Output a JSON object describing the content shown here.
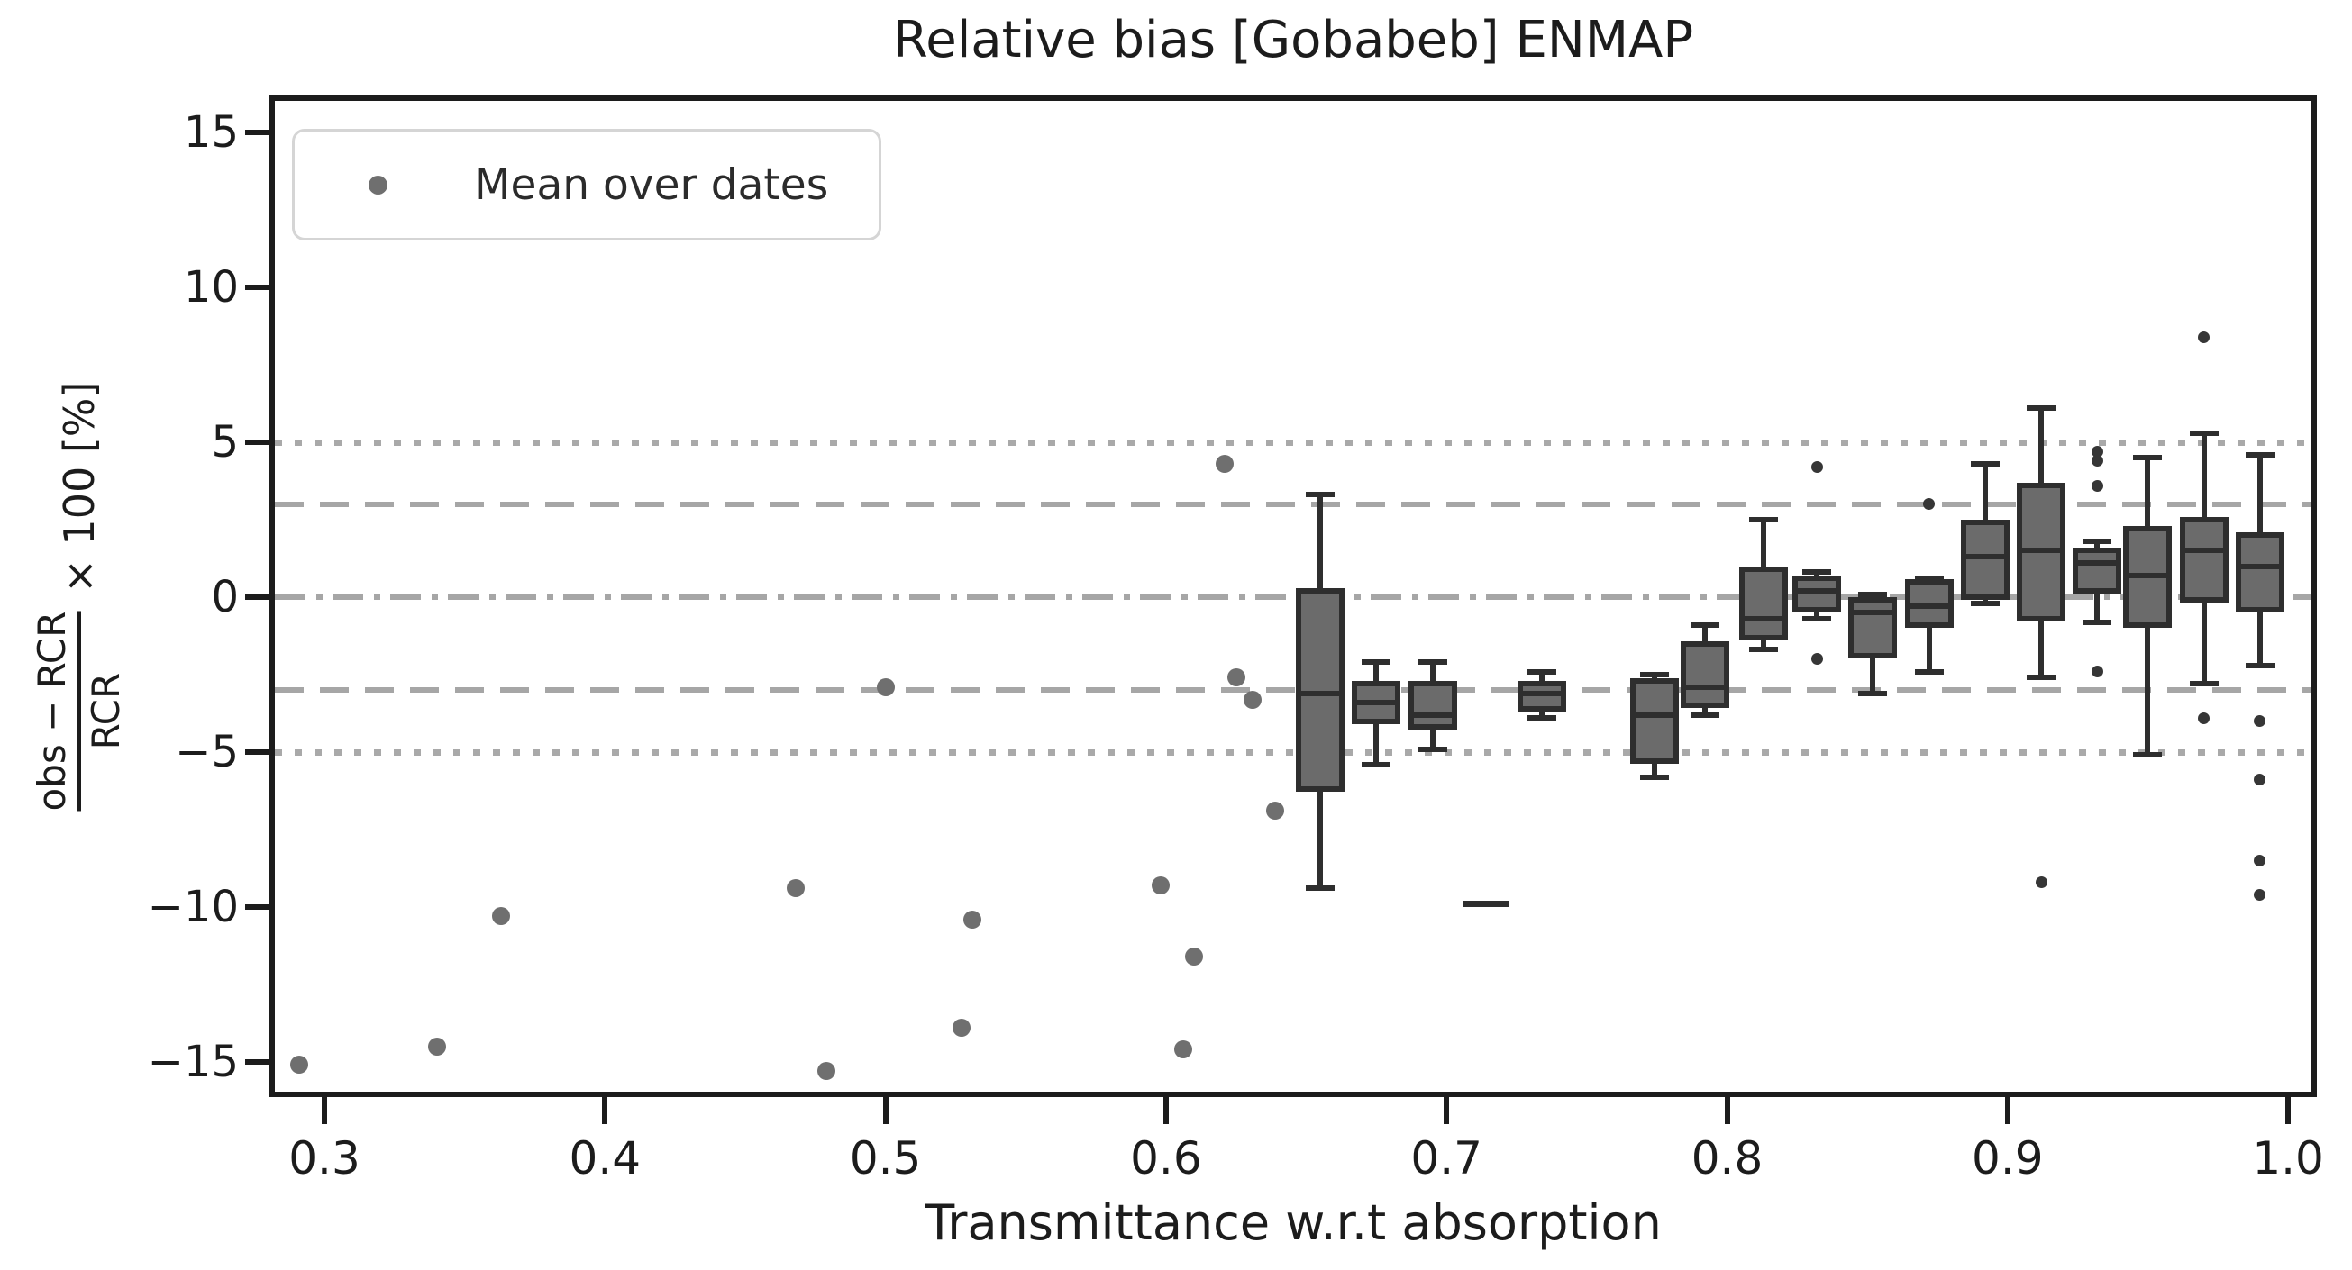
{
  "title": "Relative bias [Gobabeb] ENMAP",
  "legend": {
    "label": "Mean over dates",
    "marker": "gray-dot"
  },
  "x_axis": {
    "label": "Transmittance w.r.t absorption",
    "tick_labels": [
      "0.3",
      "0.4",
      "0.5",
      "0.6",
      "0.7",
      "0.8",
      "0.9",
      "1.0"
    ]
  },
  "y_axis": {
    "label_numerator": "obs − RCR",
    "label_denominator": "RCR",
    "label_suffix": "× 100 [%]",
    "tick_labels": [
      "15",
      "10",
      "5",
      "0",
      "−5",
      "−10",
      "−15"
    ]
  },
  "colors": {
    "box_fill": "#6b6b6b",
    "box_edge": "#2e2e2e",
    "mean_dot": "#6f6f6f",
    "flier_dot": "#363636",
    "reference_line": "#a6a6a6",
    "spine": "#1c1c1c",
    "background": "#ffffff"
  },
  "chart_data": {
    "type": "boxplot+scatter",
    "title": "Relative bias [Gobabeb] ENMAP",
    "xlabel": "Transmittance w.r.t absorption",
    "ylabel": "(obs − RCR)/RCR × 100 [%]",
    "xlim": [
      0.281,
      1.009
    ],
    "ylim": [
      -16.1,
      16.1
    ],
    "grid": false,
    "legend_position": "upper left",
    "x_ticks": [
      0.3,
      0.4,
      0.5,
      0.6,
      0.7,
      0.8,
      0.9,
      1.0
    ],
    "y_ticks": [
      15,
      10,
      5,
      0,
      -5,
      -10,
      -15
    ],
    "reference_lines": [
      {
        "y": 5,
        "style": "dotted"
      },
      {
        "y": 3,
        "style": "dashed"
      },
      {
        "y": 0,
        "style": "dashdot"
      },
      {
        "y": -3,
        "style": "dashed"
      },
      {
        "y": -5,
        "style": "dotted"
      }
    ],
    "means_series_name": "Mean over dates",
    "means": [
      [
        0.291,
        -15.1
      ],
      [
        0.34,
        -14.5
      ],
      [
        0.363,
        -10.3
      ],
      [
        0.468,
        -9.4
      ],
      [
        0.479,
        -15.3
      ],
      [
        0.5,
        -2.9
      ],
      [
        0.527,
        -13.9
      ],
      [
        0.531,
        -10.4
      ],
      [
        0.598,
        -9.3
      ],
      [
        0.606,
        -14.6
      ],
      [
        0.61,
        -11.6
      ],
      [
        0.621,
        4.3
      ],
      [
        0.625,
        -2.6
      ],
      [
        0.631,
        -3.3
      ],
      [
        0.639,
        -6.9
      ]
    ],
    "boxes": [
      {
        "x": 0.655,
        "whislo": -9.4,
        "q1": -6.2,
        "med": -3.1,
        "q3": 0.2,
        "whishi": 3.3,
        "fliers": []
      },
      {
        "x": 0.675,
        "whislo": -5.4,
        "q1": -4.0,
        "med": -3.4,
        "q3": -2.8,
        "whishi": -2.1,
        "fliers": []
      },
      {
        "x": 0.695,
        "whislo": -4.9,
        "q1": -4.2,
        "med": -3.8,
        "q3": -2.8,
        "whishi": -2.1,
        "fliers": []
      },
      {
        "x": 0.734,
        "whislo": -3.9,
        "q1": -3.6,
        "med": -3.1,
        "q3": -2.8,
        "whishi": -2.4,
        "fliers": []
      },
      {
        "x": 0.774,
        "whislo": -5.8,
        "q1": -5.3,
        "med": -3.8,
        "q3": -2.7,
        "whishi": -2.5,
        "fliers": []
      },
      {
        "x": 0.792,
        "whislo": -3.8,
        "q1": -3.5,
        "med": -2.9,
        "q3": -1.5,
        "whishi": -0.9,
        "fliers": []
      },
      {
        "x": 0.813,
        "whislo": -1.7,
        "q1": -1.3,
        "med": -0.7,
        "q3": 0.9,
        "whishi": 2.5,
        "fliers": []
      },
      {
        "x": 0.832,
        "whislo": -0.7,
        "q1": -0.4,
        "med": 0.2,
        "q3": 0.6,
        "whishi": 0.8,
        "fliers": [
          4.2,
          -2.0
        ]
      },
      {
        "x": 0.852,
        "whislo": -3.1,
        "q1": -1.9,
        "med": -0.5,
        "q3": -0.1,
        "whishi": 0.1,
        "fliers": []
      },
      {
        "x": 0.872,
        "whislo": -2.4,
        "q1": -0.9,
        "med": -0.3,
        "q3": 0.5,
        "whishi": 0.6,
        "fliers": [
          3.0
        ]
      },
      {
        "x": 0.892,
        "whislo": -0.2,
        "q1": 0.0,
        "med": 1.3,
        "q3": 2.4,
        "whishi": 4.3,
        "fliers": []
      },
      {
        "x": 0.912,
        "whislo": -2.6,
        "q1": -0.7,
        "med": 1.5,
        "q3": 3.6,
        "whishi": 6.1,
        "fliers": [
          -9.2
        ]
      },
      {
        "x": 0.932,
        "whislo": -0.8,
        "q1": 0.2,
        "med": 1.1,
        "q3": 1.5,
        "whishi": 1.8,
        "fliers": [
          4.7,
          4.4,
          3.6,
          -2.4
        ]
      },
      {
        "x": 0.95,
        "whislo": -5.1,
        "q1": -0.9,
        "med": 0.7,
        "q3": 2.2,
        "whishi": 4.5,
        "fliers": []
      },
      {
        "x": 0.97,
        "whislo": -2.8,
        "q1": -0.1,
        "med": 1.5,
        "q3": 2.5,
        "whishi": 5.3,
        "fliers": [
          8.4,
          -3.9
        ]
      },
      {
        "x": 0.99,
        "whislo": -2.2,
        "q1": -0.4,
        "med": 1.0,
        "q3": 2.0,
        "whishi": 4.6,
        "fliers": [
          -4.0,
          -5.9,
          -8.5,
          -9.6
        ]
      }
    ],
    "median_only": [
      {
        "x": 0.714,
        "med": -9.9
      }
    ]
  }
}
